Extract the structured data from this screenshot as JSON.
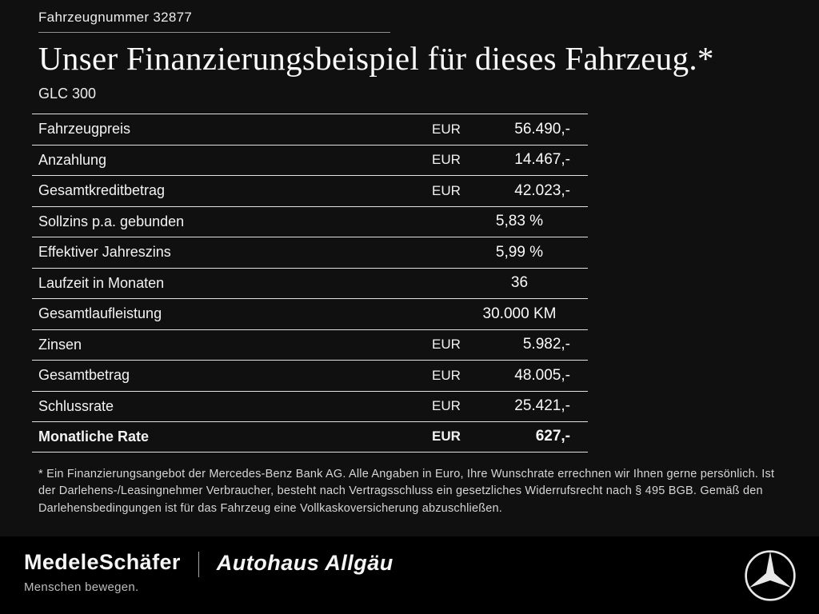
{
  "header": {
    "vehicle_number": "Fahrzeugnummer 32877",
    "title": "Unser Finanzierungsbeispiel für dieses Fahrzeug.*",
    "model": "GLC 300"
  },
  "table": {
    "rows": [
      {
        "label": "Fahrzeugpreis",
        "currency": "EUR",
        "value": "56.490,-",
        "bold": false
      },
      {
        "label": "Anzahlung",
        "currency": "EUR",
        "value": "14.467,-",
        "bold": false
      },
      {
        "label": "Gesamtkreditbetrag",
        "currency": "EUR",
        "value": "42.023,-",
        "bold": false
      },
      {
        "label": "Sollzins p.a. gebunden",
        "currency": "",
        "value": "5,83 %",
        "bold": false
      },
      {
        "label": "Effektiver Jahreszins",
        "currency": "",
        "value": "5,99 %",
        "bold": false
      },
      {
        "label": "Laufzeit in Monaten",
        "currency": "",
        "value": "36",
        "bold": false
      },
      {
        "label": "Gesamtlaufleistung",
        "currency": "",
        "value": "30.000 KM",
        "bold": false
      },
      {
        "label": "Zinsen",
        "currency": "EUR",
        "value": "5.982,-",
        "bold": false
      },
      {
        "label": "Gesamtbetrag",
        "currency": "EUR",
        "value": "48.005,-",
        "bold": false
      },
      {
        "label": "Schlussrate",
        "currency": "EUR",
        "value": "25.421,-",
        "bold": false
      },
      {
        "label": "Monatliche Rate",
        "currency": "EUR",
        "value": "627,-",
        "bold": true
      }
    ]
  },
  "footnote": "* Ein Finanzierungsangebot der Mercedes-Benz Bank AG. Alle Angaben in Euro, Ihre Wunschrate errechnen wir Ihnen gerne persönlich. Ist der Darlehens-/Leasingnehmer Verbraucher, besteht nach Vertragsschluss ein gesetzliches Widerrufsrecht nach § 495 BGB. Gemäß den Darlehensbedingungen ist für das Fahrzeug eine Vollkaskoversicherung abzuschließen.",
  "footer": {
    "dealer1": "MedeleSchäfer",
    "dealer1_tagline": "Menschen bewegen.",
    "dealer2": "Autohaus Allgäu",
    "brand_icon": "mercedes-star-icon"
  },
  "colors": {
    "background": "#101010",
    "footer_background": "#000000",
    "text": "#f2f2f2",
    "muted_text": "#bdbdbd",
    "table_line": "#e0e0e0"
  }
}
